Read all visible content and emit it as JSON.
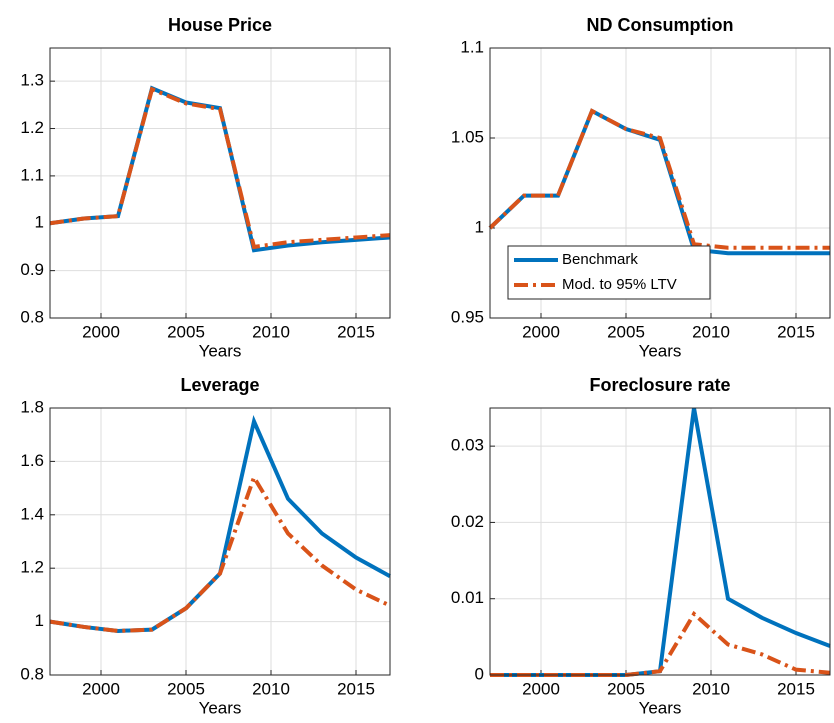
{
  "chart_data": [
    {
      "type": "line",
      "title": "House Price",
      "xlabel": "Years",
      "x": [
        1997,
        1999,
        2001,
        2003,
        2005,
        2007,
        2009,
        2011,
        2013,
        2015,
        2017
      ],
      "xlim": [
        1997,
        2017
      ],
      "xticks": [
        2000,
        2005,
        2010,
        2015
      ],
      "ylim": [
        0.8,
        1.37
      ],
      "yticks": [
        0.8,
        0.9,
        1,
        1.1,
        1.2,
        1.3
      ],
      "grid": true,
      "series": [
        {
          "color": "#0072bd",
          "dash": "solid",
          "values": [
            1.0,
            1.01,
            1.015,
            1.285,
            1.255,
            1.243,
            0.943,
            0.953,
            0.96,
            0.965,
            0.97
          ]
        },
        {
          "color": "#d95319",
          "dash": "dashdot",
          "values": [
            1.0,
            1.01,
            1.015,
            1.283,
            1.253,
            1.241,
            0.95,
            0.96,
            0.965,
            0.97,
            0.975
          ]
        }
      ]
    },
    {
      "type": "line",
      "title": "ND Consumption",
      "xlabel": "Years",
      "x": [
        1997,
        1999,
        2001,
        2003,
        2005,
        2007,
        2009,
        2011,
        2013,
        2015,
        2017
      ],
      "xlim": [
        1997,
        2017
      ],
      "xticks": [
        2000,
        2005,
        2010,
        2015
      ],
      "ylim": [
        0.95,
        1.1
      ],
      "yticks": [
        0.95,
        1,
        1.05,
        1.1
      ],
      "grid": true,
      "legend": "southwest",
      "series": [
        {
          "name": "Benchmark",
          "color": "#0072bd",
          "dash": "solid",
          "values": [
            1.0,
            1.018,
            1.018,
            1.065,
            1.055,
            1.049,
            0.988,
            0.986,
            0.986,
            0.986,
            0.986
          ]
        },
        {
          "name": "Mod. to 95% LTV",
          "color": "#d95319",
          "dash": "dashdot",
          "values": [
            1.0,
            1.018,
            1.018,
            1.065,
            1.055,
            1.05,
            0.991,
            0.989,
            0.989,
            0.989,
            0.989
          ]
        }
      ]
    },
    {
      "type": "line",
      "title": "Leverage",
      "xlabel": "Years",
      "x": [
        1997,
        1999,
        2001,
        2003,
        2005,
        2007,
        2009,
        2011,
        2013,
        2015,
        2017
      ],
      "xlim": [
        1997,
        2017
      ],
      "xticks": [
        2000,
        2005,
        2010,
        2015
      ],
      "ylim": [
        0.8,
        1.8
      ],
      "yticks": [
        0.8,
        1,
        1.2,
        1.4,
        1.6,
        1.8
      ],
      "grid": true,
      "series": [
        {
          "color": "#0072bd",
          "dash": "solid",
          "values": [
            1.0,
            0.98,
            0.965,
            0.97,
            1.05,
            1.18,
            1.75,
            1.46,
            1.33,
            1.24,
            1.17
          ]
        },
        {
          "color": "#d95319",
          "dash": "dashdot",
          "values": [
            1.0,
            0.98,
            0.965,
            0.97,
            1.05,
            1.18,
            1.54,
            1.33,
            1.21,
            1.12,
            1.06
          ]
        }
      ]
    },
    {
      "type": "line",
      "title": "Foreclosure rate",
      "xlabel": "Years",
      "x": [
        1997,
        1999,
        2001,
        2003,
        2005,
        2007,
        2009,
        2011,
        2013,
        2015,
        2017
      ],
      "xlim": [
        1997,
        2017
      ],
      "xticks": [
        2000,
        2005,
        2010,
        2015
      ],
      "ylim": [
        0,
        0.035
      ],
      "yticks": [
        0,
        0.01,
        0.02,
        0.03
      ],
      "grid": true,
      "series": [
        {
          "color": "#0072bd",
          "dash": "solid",
          "values": [
            0,
            0,
            0,
            0,
            0,
            0.0005,
            0.035,
            0.01,
            0.0075,
            0.0055,
            0.0038
          ]
        },
        {
          "color": "#d95319",
          "dash": "dashdot",
          "values": [
            0,
            0,
            0,
            0,
            0,
            0.0005,
            0.008,
            0.004,
            0.0027,
            0.0007,
            0.0003
          ]
        }
      ]
    }
  ]
}
